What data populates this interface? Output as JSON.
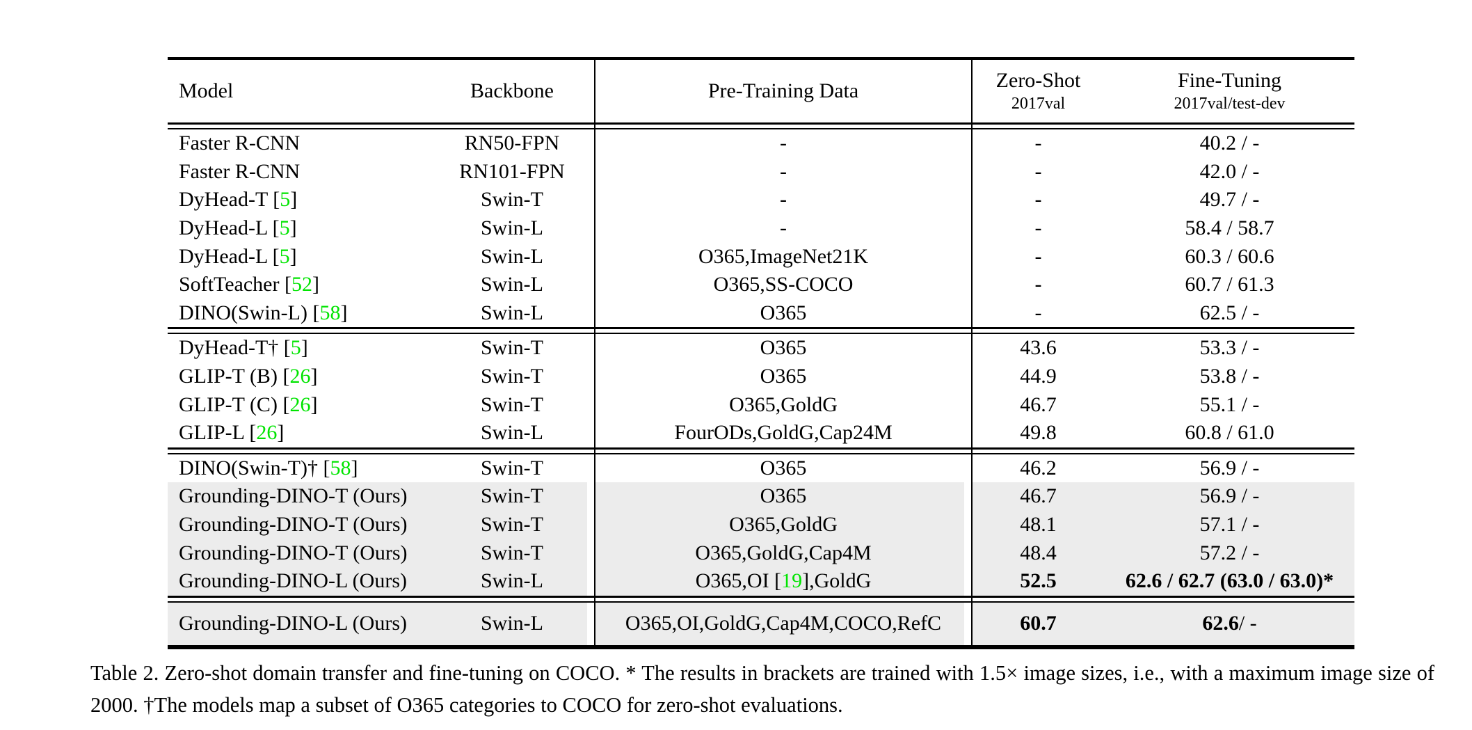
{
  "colors": {
    "cite_green": "#00e400",
    "row_gray": "#ececec"
  },
  "table": {
    "header": {
      "model": "Model",
      "backbone": "Backbone",
      "pretraining": "Pre-Training Data",
      "zero_shot": "Zero-Shot",
      "zero_shot_sub": "2017val",
      "fine_tuning": "Fine-Tuning",
      "fine_tuning_sub": "2017val/test-dev"
    },
    "groups": [
      {
        "rows": [
          {
            "model": "Faster R-CNN",
            "cite": "",
            "backbone": "RN50-FPN",
            "pre_a": "-",
            "pre_cite": "",
            "pre_b": "",
            "zs": "-",
            "zs_bold": false,
            "ft_a": "",
            "ft_b": "40.2 / -",
            "gray": false
          },
          {
            "model": "Faster R-CNN",
            "cite": "",
            "backbone": "RN101-FPN",
            "pre_a": "-",
            "pre_cite": "",
            "pre_b": "",
            "zs": "-",
            "zs_bold": false,
            "ft_a": "",
            "ft_b": "42.0 / -",
            "gray": false
          },
          {
            "model": "DyHead-T",
            "cite": "5",
            "backbone": "Swin-T",
            "pre_a": "-",
            "pre_cite": "",
            "pre_b": "",
            "zs": "-",
            "zs_bold": false,
            "ft_a": "",
            "ft_b": "49.7 / -",
            "gray": false
          },
          {
            "model": "DyHead-L",
            "cite": "5",
            "backbone": "Swin-L",
            "pre_a": "-",
            "pre_cite": "",
            "pre_b": "",
            "zs": "-",
            "zs_bold": false,
            "ft_a": "",
            "ft_b": "58.4 / 58.7",
            "gray": false
          },
          {
            "model": "DyHead-L",
            "cite": "5",
            "backbone": "Swin-L",
            "pre_a": "O365,ImageNet21K",
            "pre_cite": "",
            "pre_b": "",
            "zs": "-",
            "zs_bold": false,
            "ft_a": "",
            "ft_b": "60.3 / 60.6",
            "gray": false
          },
          {
            "model": "SoftTeacher",
            "cite": "52",
            "backbone": "Swin-L",
            "pre_a": "O365,SS-COCO",
            "pre_cite": "",
            "pre_b": "",
            "zs": "-",
            "zs_bold": false,
            "ft_a": "",
            "ft_b": "60.7 / 61.3",
            "gray": false
          },
          {
            "model": "DINO(Swin-L)",
            "cite": "58",
            "backbone": "Swin-L",
            "pre_a": "O365",
            "pre_cite": "",
            "pre_b": "",
            "zs": "-",
            "zs_bold": false,
            "ft_a": "",
            "ft_b": "62.5 / -",
            "gray": false
          }
        ]
      },
      {
        "rows": [
          {
            "model": "DyHead-T†",
            "cite": "5",
            "backbone": "Swin-T",
            "pre_a": "O365",
            "pre_cite": "",
            "pre_b": "",
            "zs": "43.6",
            "zs_bold": false,
            "ft_a": "",
            "ft_b": "53.3 / -",
            "gray": false
          },
          {
            "model": "GLIP-T (B)",
            "cite": "26",
            "backbone": "Swin-T",
            "pre_a": "O365",
            "pre_cite": "",
            "pre_b": "",
            "zs": "44.9",
            "zs_bold": false,
            "ft_a": "",
            "ft_b": "53.8 / -",
            "gray": false
          },
          {
            "model": "GLIP-T (C)",
            "cite": "26",
            "backbone": "Swin-T",
            "pre_a": "O365,GoldG",
            "pre_cite": "",
            "pre_b": "",
            "zs": "46.7",
            "zs_bold": false,
            "ft_a": "",
            "ft_b": "55.1 / -",
            "gray": false
          },
          {
            "model": "GLIP-L",
            "cite": "26",
            "backbone": "Swin-L",
            "pre_a": "FourODs,GoldG,Cap24M",
            "pre_cite": "",
            "pre_b": "",
            "zs": "49.8",
            "zs_bold": false,
            "ft_a": "",
            "ft_b": "60.8 / 61.0",
            "gray": false
          }
        ]
      },
      {
        "rows": [
          {
            "model": "DINO(Swin-T)†",
            "cite": "58",
            "backbone": "Swin-T",
            "pre_a": "O365",
            "pre_cite": "",
            "pre_b": "",
            "zs": "46.2",
            "zs_bold": false,
            "ft_a": "",
            "ft_b": "56.9 / -",
            "gray": false
          },
          {
            "model": "Grounding-DINO-T (Ours)",
            "cite": "",
            "backbone": "Swin-T",
            "pre_a": "O365",
            "pre_cite": "",
            "pre_b": "",
            "zs": "46.7",
            "zs_bold": false,
            "ft_a": "",
            "ft_b": "56.9 / -",
            "gray": true
          },
          {
            "model": "Grounding-DINO-T (Ours)",
            "cite": "",
            "backbone": "Swin-T",
            "pre_a": "O365,GoldG",
            "pre_cite": "",
            "pre_b": "",
            "zs": "48.1",
            "zs_bold": false,
            "ft_a": "",
            "ft_b": "57.1 / -",
            "gray": true
          },
          {
            "model": "Grounding-DINO-T (Ours)",
            "cite": "",
            "backbone": "Swin-T",
            "pre_a": "O365,GoldG,Cap4M",
            "pre_cite": "",
            "pre_b": "",
            "zs": "48.4",
            "zs_bold": false,
            "ft_a": "",
            "ft_b": "57.2 / -",
            "gray": true
          },
          {
            "model": "Grounding-DINO-L (Ours)",
            "cite": "",
            "backbone": "Swin-L",
            "pre_a": "O365,OI [",
            "pre_cite": "19",
            "pre_b": "],GoldG",
            "zs": "52.5",
            "zs_bold": true,
            "ft_a": "62.6 / 62.7 (63.0 / 63.0)*",
            "ft_b": "",
            "gray": true
          }
        ]
      },
      {
        "rows": [
          {
            "model": "Grounding-DINO-L (Ours)",
            "cite": "",
            "backbone": "Swin-L",
            "pre_a": "O365,OI,GoldG,Cap4M,COCO,RefC",
            "pre_cite": "",
            "pre_b": "",
            "zs": "60.7",
            "zs_bold": true,
            "ft_a": "62.6",
            "ft_b": " / -",
            "gray": true
          }
        ]
      }
    ]
  },
  "caption": {
    "text": "Table 2.  Zero-shot domain transfer and fine-tuning on COCO. * The results in brackets are trained with 1.5× image sizes, i.e., with a maximum image size of 2000. †The models map a subset of O365 categories to COCO for zero-shot evaluations."
  }
}
